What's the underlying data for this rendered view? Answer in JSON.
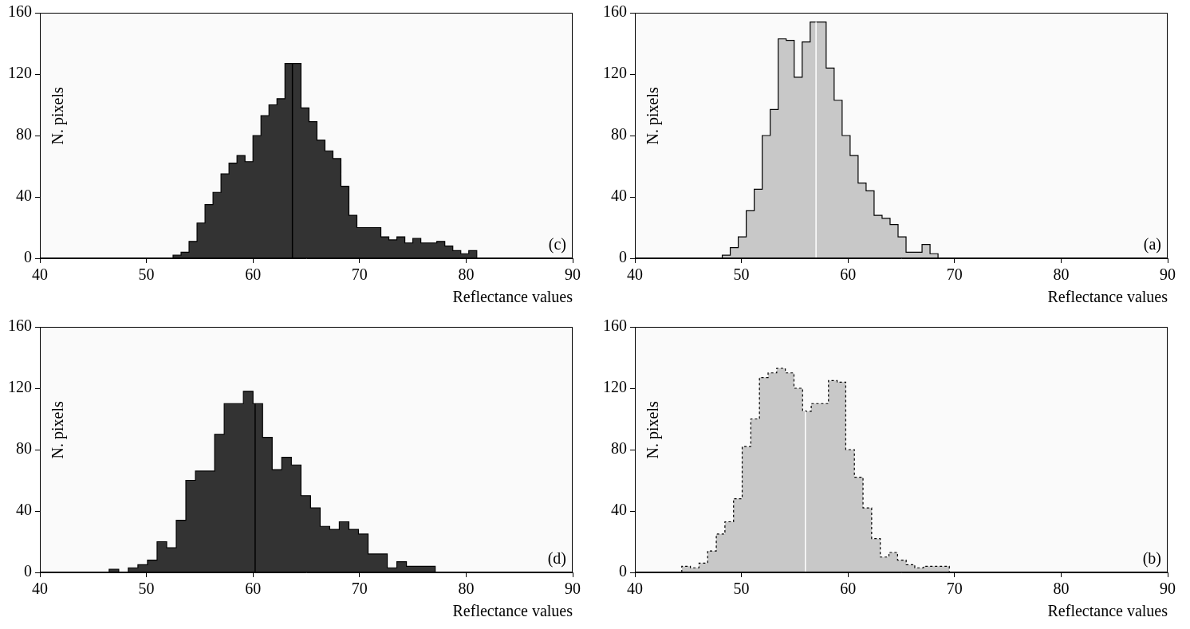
{
  "chart_data": [
    {
      "type": "histogram",
      "label": "(c)",
      "x_label": "Reflectance values",
      "y_label": "N. pixels",
      "bins": [
        52.5,
        53.25,
        54,
        54.75,
        55.5,
        56.25,
        57,
        57.75,
        58.5,
        59.25,
        60,
        60.75,
        61.5,
        62.25,
        63,
        63.75,
        64.5,
        65.25,
        66,
        66.75,
        67.5,
        68.25,
        69,
        69.75,
        70.5,
        71.25,
        72,
        72.75,
        73.5,
        74.25,
        75,
        75.75,
        76.5,
        77.25,
        78,
        78.75,
        79.5,
        80.25,
        81
      ],
      "values": [
        2,
        4,
        11,
        23,
        35,
        43,
        55,
        62,
        67,
        63,
        80,
        93,
        100,
        104,
        127,
        127,
        98,
        89,
        77,
        70,
        65,
        47,
        28,
        20,
        20,
        20,
        14,
        12,
        14,
        10,
        13,
        10,
        10,
        11,
        8,
        5,
        3,
        5
      ],
      "median": 63.7,
      "color": "#333333",
      "line_style": "solid",
      "xlim": [
        40,
        90
      ],
      "xticks": [
        40,
        50,
        60,
        70,
        80,
        90
      ],
      "ylim": [
        0,
        160
      ],
      "yticks": [
        0,
        40,
        80,
        120,
        160
      ],
      "grid": false
    },
    {
      "type": "histogram",
      "label": "(a)",
      "x_label": "Reflectance values",
      "y_label": "N. pixels",
      "bins": [
        48.2,
        48.95,
        49.7,
        50.45,
        51.2,
        51.95,
        52.7,
        53.45,
        54.2,
        54.95,
        55.7,
        56.45,
        57.2,
        57.95,
        58.7,
        59.45,
        60.2,
        60.95,
        61.7,
        62.45,
        63.2,
        63.95,
        64.7,
        65.45,
        66.2,
        66.95,
        67.7,
        68.45
      ],
      "values": [
        2,
        7,
        14,
        31,
        45,
        80,
        97,
        143,
        142,
        118,
        141,
        154,
        154,
        124,
        103,
        80,
        67,
        49,
        44,
        28,
        26,
        22,
        14,
        4,
        4,
        9,
        3
      ],
      "median": 57.0,
      "color": "#c8c8c8",
      "line_style": "solid",
      "xlim": [
        40,
        90
      ],
      "xticks": [
        40,
        50,
        60,
        70,
        80,
        90
      ],
      "ylim": [
        0,
        160
      ],
      "yticks": [
        0,
        40,
        80,
        120,
        160
      ],
      "grid": false
    },
    {
      "type": "histogram",
      "label": "(d)",
      "x_label": "Reflectance values",
      "y_label": "N. pixels",
      "bins": [
        46.5,
        47.4,
        48.3,
        49.2,
        50.1,
        51,
        51.9,
        52.8,
        53.7,
        54.6,
        55.5,
        56.4,
        57.3,
        58.2,
        59.1,
        60,
        60.9,
        61.8,
        62.7,
        63.6,
        64.5,
        65.4,
        66.3,
        67.2,
        68.1,
        69,
        69.9,
        70.8,
        71.7,
        72.6,
        73.5,
        74.4,
        75.3,
        76.2,
        77.1
      ],
      "values": [
        2,
        0,
        3,
        5,
        8,
        20,
        16,
        34,
        60,
        66,
        66,
        90,
        110,
        110,
        118,
        110,
        88,
        67,
        75,
        70,
        50,
        42,
        30,
        28,
        33,
        28,
        25,
        12,
        12,
        3,
        7,
        4,
        4,
        4
      ],
      "median": 60.2,
      "color": "#333333",
      "line_style": "solid",
      "xlim": [
        40,
        90
      ],
      "xticks": [
        40,
        50,
        60,
        70,
        80,
        90
      ],
      "ylim": [
        0,
        160
      ],
      "yticks": [
        0,
        40,
        80,
        120,
        160
      ],
      "grid": false
    },
    {
      "type": "histogram",
      "label": "(b)",
      "x_label": "Reflectance values",
      "y_label": "N. pixels",
      "bins": [
        44.4,
        45.21,
        46.02,
        46.83,
        47.64,
        48.45,
        49.26,
        50.07,
        50.88,
        51.69,
        52.5,
        53.31,
        54.12,
        54.93,
        55.74,
        56.55,
        57.36,
        58.17,
        58.98,
        59.79,
        60.6,
        61.41,
        62.22,
        63.03,
        63.84,
        64.65,
        65.46,
        66.27,
        67.08,
        67.89,
        68.7,
        69.51
      ],
      "values": [
        4,
        3,
        6,
        14,
        25,
        33,
        48,
        82,
        100,
        127,
        130,
        133,
        130,
        120,
        105,
        110,
        110,
        125,
        124,
        80,
        62,
        42,
        22,
        10,
        13,
        8,
        5,
        3,
        4,
        4,
        4
      ],
      "median": 56.0,
      "color": "#c8c8c8",
      "line_style": "dotted",
      "xlim": [
        40,
        90
      ],
      "xticks": [
        40,
        50,
        60,
        70,
        80,
        90
      ],
      "ylim": [
        0,
        160
      ],
      "yticks": [
        0,
        40,
        80,
        120,
        160
      ],
      "grid": false
    }
  ]
}
